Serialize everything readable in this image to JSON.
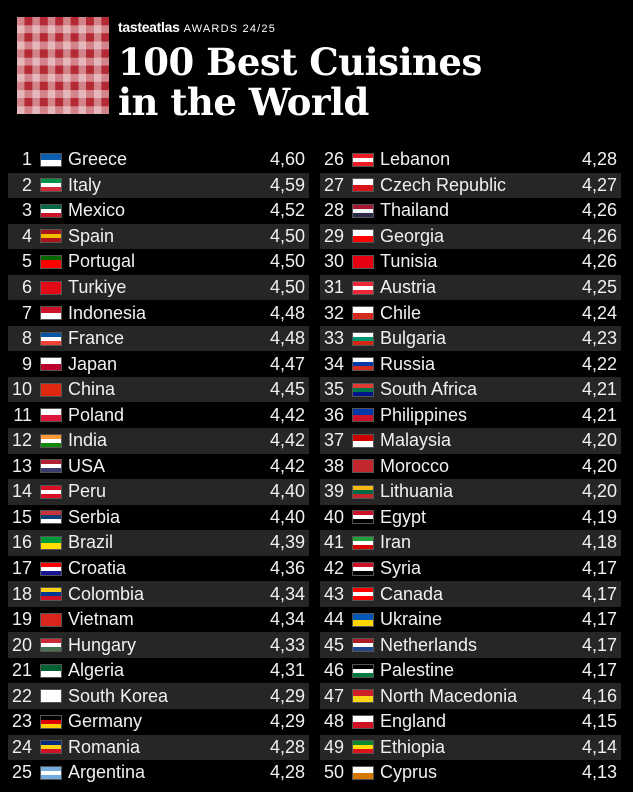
{
  "header": {
    "brand": "tasteatlas",
    "awards": "AWARDS 24/25",
    "title_line1": "100 Best Cuisines",
    "title_line2": "in the World"
  },
  "left_column": [
    {
      "rank": "1",
      "country": "Greece",
      "score": "4,60",
      "flag_colors": [
        "#0d5eaf",
        "#ffffff"
      ]
    },
    {
      "rank": "2",
      "country": "Italy",
      "score": "4,59",
      "flag_colors": [
        "#009246",
        "#ffffff",
        "#ce2b37"
      ]
    },
    {
      "rank": "3",
      "country": "Mexico",
      "score": "4,52",
      "flag_colors": [
        "#006847",
        "#ffffff",
        "#ce1126"
      ]
    },
    {
      "rank": "4",
      "country": "Spain",
      "score": "4,50",
      "flag_colors": [
        "#aa151b",
        "#f1bf00",
        "#aa151b"
      ]
    },
    {
      "rank": "5",
      "country": "Portugal",
      "score": "4,50",
      "flag_colors": [
        "#006600",
        "#ff0000",
        "#ff0000"
      ]
    },
    {
      "rank": "6",
      "country": "Turkiye",
      "score": "4,50",
      "flag_colors": [
        "#e30a17",
        "#e30a17"
      ]
    },
    {
      "rank": "7",
      "country": "Indonesia",
      "score": "4,48",
      "flag_colors": [
        "#ce1126",
        "#ffffff"
      ]
    },
    {
      "rank": "8",
      "country": "France",
      "score": "4,48",
      "flag_colors": [
        "#0055a4",
        "#ffffff",
        "#ef4135"
      ]
    },
    {
      "rank": "9",
      "country": "Japan",
      "score": "4,47",
      "flag_colors": [
        "#ffffff",
        "#bc002d"
      ]
    },
    {
      "rank": "10",
      "country": "China",
      "score": "4,45",
      "flag_colors": [
        "#de2910",
        "#de2910"
      ]
    },
    {
      "rank": "11",
      "country": "Poland",
      "score": "4,42",
      "flag_colors": [
        "#ffffff",
        "#dc143c"
      ]
    },
    {
      "rank": "12",
      "country": "India",
      "score": "4,42",
      "flag_colors": [
        "#ff9933",
        "#ffffff",
        "#138808"
      ]
    },
    {
      "rank": "13",
      "country": "USA",
      "score": "4,42",
      "flag_colors": [
        "#b22234",
        "#ffffff",
        "#3c3b6e"
      ]
    },
    {
      "rank": "14",
      "country": "Peru",
      "score": "4,40",
      "flag_colors": [
        "#d91023",
        "#ffffff",
        "#d91023"
      ]
    },
    {
      "rank": "15",
      "country": "Serbia",
      "score": "4,40",
      "flag_colors": [
        "#c6363c",
        "#0c4076",
        "#ffffff"
      ]
    },
    {
      "rank": "16",
      "country": "Brazil",
      "score": "4,39",
      "flag_colors": [
        "#009c3b",
        "#ffdf00"
      ]
    },
    {
      "rank": "17",
      "country": "Croatia",
      "score": "4,36",
      "flag_colors": [
        "#ff0000",
        "#ffffff",
        "#171796"
      ]
    },
    {
      "rank": "18",
      "country": "Colombia",
      "score": "4,34",
      "flag_colors": [
        "#fcd116",
        "#003893",
        "#ce1126"
      ]
    },
    {
      "rank": "19",
      "country": "Vietnam",
      "score": "4,34",
      "flag_colors": [
        "#da251d",
        "#da251d"
      ]
    },
    {
      "rank": "20",
      "country": "Hungary",
      "score": "4,33",
      "flag_colors": [
        "#ce2939",
        "#ffffff",
        "#477050"
      ]
    },
    {
      "rank": "21",
      "country": "Algeria",
      "score": "4,31",
      "flag_colors": [
        "#006233",
        "#ffffff"
      ]
    },
    {
      "rank": "22",
      "country": "South Korea",
      "score": "4,29",
      "flag_colors": [
        "#ffffff",
        "#ffffff"
      ]
    },
    {
      "rank": "23",
      "country": "Germany",
      "score": "4,29",
      "flag_colors": [
        "#000000",
        "#dd0000",
        "#ffce00"
      ]
    },
    {
      "rank": "24",
      "country": "Romania",
      "score": "4,28",
      "flag_colors": [
        "#002b7f",
        "#fcd116",
        "#ce1126"
      ]
    },
    {
      "rank": "25",
      "country": "Argentina",
      "score": "4,28",
      "flag_colors": [
        "#74acdf",
        "#ffffff",
        "#74acdf"
      ]
    }
  ],
  "right_column": [
    {
      "rank": "26",
      "country": "Lebanon",
      "score": "4,28",
      "flag_colors": [
        "#ed1c24",
        "#ffffff",
        "#ed1c24"
      ]
    },
    {
      "rank": "27",
      "country": "Czech Republic",
      "score": "4,27",
      "flag_colors": [
        "#ffffff",
        "#d7141a"
      ]
    },
    {
      "rank": "28",
      "country": "Thailand",
      "score": "4,26",
      "flag_colors": [
        "#a51931",
        "#f4f5f8",
        "#2d2a4a"
      ]
    },
    {
      "rank": "29",
      "country": "Georgia",
      "score": "4,26",
      "flag_colors": [
        "#ffffff",
        "#ff0000"
      ]
    },
    {
      "rank": "30",
      "country": "Tunisia",
      "score": "4,26",
      "flag_colors": [
        "#e70013",
        "#e70013"
      ]
    },
    {
      "rank": "31",
      "country": "Austria",
      "score": "4,25",
      "flag_colors": [
        "#ed2939",
        "#ffffff",
        "#ed2939"
      ]
    },
    {
      "rank": "32",
      "country": "Chile",
      "score": "4,24",
      "flag_colors": [
        "#ffffff",
        "#d52b1e"
      ]
    },
    {
      "rank": "33",
      "country": "Bulgaria",
      "score": "4,23",
      "flag_colors": [
        "#ffffff",
        "#00966e",
        "#d62612"
      ]
    },
    {
      "rank": "34",
      "country": "Russia",
      "score": "4,22",
      "flag_colors": [
        "#ffffff",
        "#0039a6",
        "#d52b1e"
      ]
    },
    {
      "rank": "35",
      "country": "South Africa",
      "score": "4,21",
      "flag_colors": [
        "#e03c31",
        "#007749",
        "#001489"
      ]
    },
    {
      "rank": "36",
      "country": "Philippines",
      "score": "4,21",
      "flag_colors": [
        "#0038a8",
        "#ce1126"
      ]
    },
    {
      "rank": "37",
      "country": "Malaysia",
      "score": "4,20",
      "flag_colors": [
        "#cc0001",
        "#ffffff"
      ]
    },
    {
      "rank": "38",
      "country": "Morocco",
      "score": "4,20",
      "flag_colors": [
        "#c1272d",
        "#c1272d"
      ]
    },
    {
      "rank": "39",
      "country": "Lithuania",
      "score": "4,20",
      "flag_colors": [
        "#fdb913",
        "#006a44",
        "#c1272d"
      ]
    },
    {
      "rank": "40",
      "country": "Egypt",
      "score": "4,19",
      "flag_colors": [
        "#ce1126",
        "#ffffff",
        "#000000"
      ]
    },
    {
      "rank": "41",
      "country": "Iran",
      "score": "4,18",
      "flag_colors": [
        "#239f40",
        "#ffffff",
        "#da0000"
      ]
    },
    {
      "rank": "42",
      "country": "Syria",
      "score": "4,17",
      "flag_colors": [
        "#ce1126",
        "#ffffff",
        "#000000"
      ]
    },
    {
      "rank": "43",
      "country": "Canada",
      "score": "4,17",
      "flag_colors": [
        "#ff0000",
        "#ffffff",
        "#ff0000"
      ]
    },
    {
      "rank": "44",
      "country": "Ukraine",
      "score": "4,17",
      "flag_colors": [
        "#0057b7",
        "#ffd700"
      ]
    },
    {
      "rank": "45",
      "country": "Netherlands",
      "score": "4,17",
      "flag_colors": [
        "#ae1c28",
        "#ffffff",
        "#21468b"
      ]
    },
    {
      "rank": "46",
      "country": "Palestine",
      "score": "4,17",
      "flag_colors": [
        "#000000",
        "#ffffff",
        "#007a3d"
      ]
    },
    {
      "rank": "47",
      "country": "North Macedonia",
      "score": "4,16",
      "flag_colors": [
        "#ce2028",
        "#f9d616"
      ]
    },
    {
      "rank": "48",
      "country": "England",
      "score": "4,15",
      "flag_colors": [
        "#ffffff",
        "#ce1124"
      ]
    },
    {
      "rank": "49",
      "country": "Ethiopia",
      "score": "4,14",
      "flag_colors": [
        "#078930",
        "#fcdd09",
        "#da121a"
      ]
    },
    {
      "rank": "50",
      "country": "Cyprus",
      "score": "4,13",
      "flag_colors": [
        "#ffffff",
        "#d57800"
      ]
    }
  ]
}
